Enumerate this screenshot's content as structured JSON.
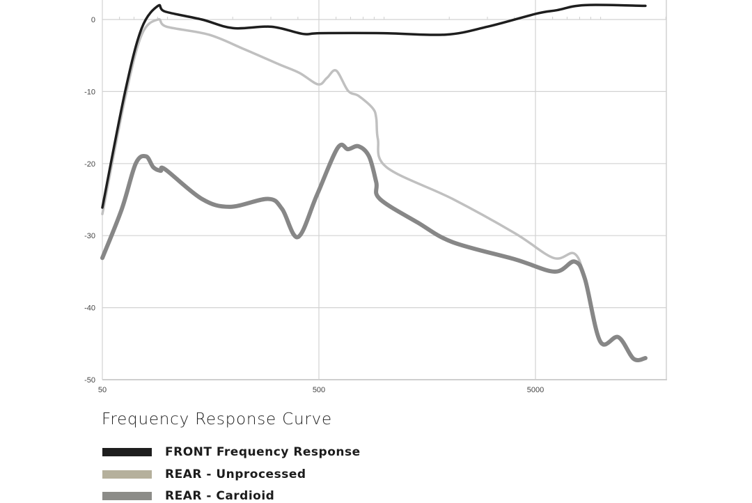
{
  "chart_data": {
    "type": "line",
    "title": "Frequency Response Curve",
    "xlabel": "",
    "ylabel": "",
    "xscale": "log",
    "xlim": [
      50,
      20000
    ],
    "ylim": [
      -50,
      2.7
    ],
    "xticks": [
      50,
      500,
      5000
    ],
    "yticks": [
      0,
      -10,
      -20,
      -30,
      -40,
      -50
    ],
    "grid": true,
    "legend_position": "bottom",
    "series": [
      {
        "name": "FRONT Frequency Response",
        "color": "#1e1e1e",
        "legend_color": "#1e1e1e",
        "x": [
          50,
          63.8,
          76,
          90.4,
          97.5,
          144,
          201,
          302,
          422,
          508,
          988,
          1923,
          3000,
          5040,
          6300,
          8460,
          16100
        ],
        "y": [
          -26.1,
          -9.9,
          -1.2,
          1.9,
          1.1,
          0,
          -1.2,
          -1.0,
          -2.0,
          -1.9,
          -1.9,
          -2.1,
          -1.0,
          0.8,
          1.3,
          2.0,
          1.9
        ]
      },
      {
        "name": "REAR - Unprocessed",
        "color": "#c0c0c0",
        "legend_color": "#b5b09c",
        "x": [
          50,
          63.8,
          76,
          90.4,
          99,
          155,
          225,
          326,
          406,
          496,
          545,
          601,
          682,
          762,
          885,
          920,
          936,
          1026,
          2070,
          4035,
          6060,
          7570,
          8460,
          9960,
          12080,
          14200,
          16100
        ],
        "y": [
          -27,
          -10.8,
          -2.1,
          0,
          -1,
          -2.1,
          -4.1,
          -6.2,
          -7.4,
          -9.0,
          -8.1,
          -7.1,
          -9.9,
          -10.6,
          -12.3,
          -13.7,
          -16.6,
          -20.5,
          -24.9,
          -29.7,
          -33.1,
          -32.5,
          -36,
          -44.7,
          -44.1,
          -47.1,
          -47
        ]
      },
      {
        "name": "REAR - Cardioid",
        "color": "#878787",
        "legend_color": "#8c8c88",
        "x": [
          50,
          61.5,
          71.3,
          79.6,
          85.9,
          92.9,
          97.5,
          144,
          194,
          291,
          338,
          400,
          489,
          611,
          682,
          762,
          852,
          920,
          955,
          1432,
          2070,
          4035,
          6140,
          7570,
          8460,
          9960,
          12080,
          14200,
          16100
        ],
        "y": [
          -33.1,
          -26.3,
          -20,
          -19,
          -20.5,
          -21,
          -20.8,
          -24.9,
          -26,
          -24.9,
          -26.3,
          -30.2,
          -24.4,
          -17.8,
          -18,
          -17.6,
          -19,
          -22.6,
          -24.9,
          -28.2,
          -30.9,
          -33.3,
          -35,
          -33.6,
          -36,
          -44.7,
          -44.1,
          -47.1,
          -47
        ]
      }
    ]
  }
}
